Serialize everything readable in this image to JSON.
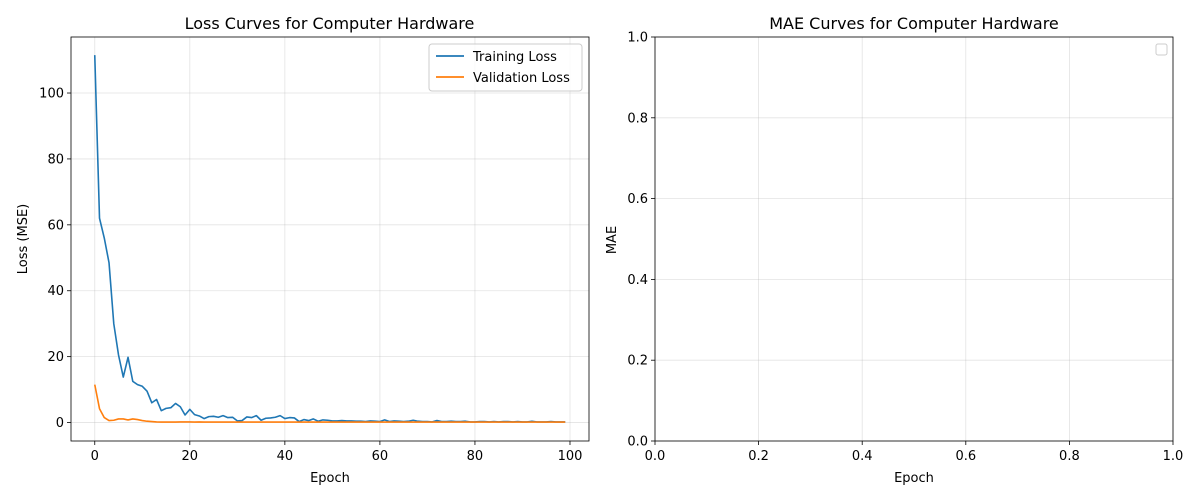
{
  "chart_data": [
    {
      "type": "line",
      "title": "Loss Curves for Computer Hardware",
      "xlabel": "Epoch",
      "ylabel": "Loss (MSE)",
      "xlim": [
        -5,
        104
      ],
      "ylim": [
        -5.6,
        117
      ],
      "xticks": [
        0,
        20,
        40,
        60,
        80,
        100
      ],
      "yticks": [
        0,
        20,
        40,
        60,
        80,
        100
      ],
      "grid": true,
      "legend": "upper right",
      "series": [
        {
          "name": "Training Loss",
          "color": "#1f77b4",
          "x": [
            0,
            1,
            2,
            3,
            4,
            5,
            6,
            7,
            8,
            9,
            10,
            11,
            12,
            13,
            14,
            15,
            16,
            17,
            18,
            19,
            20,
            21,
            22,
            23,
            24,
            25,
            26,
            27,
            28,
            29,
            30,
            31,
            32,
            33,
            34,
            35,
            36,
            37,
            38,
            39,
            40,
            41,
            42,
            43,
            44,
            45,
            46,
            47,
            48,
            49,
            50,
            51,
            52,
            53,
            54,
            55,
            56,
            57,
            58,
            59,
            60,
            61,
            62,
            63,
            64,
            65,
            66,
            67,
            68,
            69,
            70,
            71,
            72,
            73,
            74,
            75,
            76,
            77,
            78,
            79,
            80,
            81,
            82,
            83,
            84,
            85,
            86,
            87,
            88,
            89,
            90,
            91,
            92,
            93,
            94,
            95,
            96,
            97,
            98,
            99
          ],
          "values": [
            111.5,
            62,
            56,
            48.5,
            30,
            20.5,
            13.8,
            19.8,
            12.5,
            11.5,
            11,
            9.5,
            6,
            7,
            3.6,
            4.3,
            4.5,
            5.8,
            4.8,
            2.3,
            4,
            2.4,
            2,
            1.2,
            1.8,
            1.9,
            1.6,
            2.1,
            1.5,
            1.6,
            0.5,
            0.6,
            1.7,
            1.5,
            2.1,
            0.7,
            1.3,
            1.4,
            1.6,
            2.1,
            1.2,
            1.5,
            1.4,
            0.3,
            0.9,
            0.6,
            1.1,
            0.4,
            0.8,
            0.7,
            0.5,
            0.5,
            0.6,
            0.5,
            0.5,
            0.4,
            0.4,
            0.3,
            0.5,
            0.4,
            0.3,
            0.8,
            0.3,
            0.5,
            0.4,
            0.3,
            0.4,
            0.7,
            0.4,
            0.3,
            0.3,
            0.2,
            0.6,
            0.3,
            0.3,
            0.4,
            0.3,
            0.3,
            0.4,
            0.2,
            0.2,
            0.3,
            0.3,
            0.2,
            0.3,
            0.2,
            0.3,
            0.3,
            0.2,
            0.3,
            0.2,
            0.2,
            0.4,
            0.2,
            0.2,
            0.2,
            0.3,
            0.2,
            0.2,
            0.2
          ]
        },
        {
          "name": "Validation Loss",
          "color": "#ff7f0e",
          "x": [
            0,
            1,
            2,
            3,
            4,
            5,
            6,
            7,
            8,
            9,
            10,
            11,
            12,
            13,
            14,
            15,
            16,
            17,
            18,
            19,
            20,
            21,
            22,
            23,
            24,
            25,
            26,
            27,
            28,
            29,
            30,
            31,
            32,
            33,
            34,
            35,
            36,
            37,
            38,
            39,
            40,
            41,
            42,
            43,
            44,
            45,
            46,
            47,
            48,
            49,
            50,
            51,
            52,
            53,
            54,
            55,
            56,
            57,
            58,
            59,
            60,
            61,
            62,
            63,
            64,
            65,
            66,
            67,
            68,
            69,
            70,
            71,
            72,
            73,
            74,
            75,
            76,
            77,
            78,
            79,
            80,
            81,
            82,
            83,
            84,
            85,
            86,
            87,
            88,
            89,
            90,
            91,
            92,
            93,
            94,
            95,
            96,
            97,
            98,
            99
          ],
          "values": [
            11.5,
            4.2,
            1.5,
            0.6,
            0.7,
            1.1,
            1.1,
            0.8,
            1.1,
            0.9,
            0.6,
            0.4,
            0.3,
            0.2,
            0.15,
            0.15,
            0.15,
            0.15,
            0.2,
            0.2,
            0.2,
            0.15,
            0.2,
            0.15,
            0.15,
            0.15,
            0.15,
            0.15,
            0.15,
            0.15,
            0.15,
            0.15,
            0.15,
            0.15,
            0.15,
            0.15,
            0.15,
            0.15,
            0.15,
            0.15,
            0.15,
            0.15,
            0.15,
            0.15,
            0.15,
            0.15,
            0.15,
            0.15,
            0.15,
            0.15,
            0.15,
            0.15,
            0.15,
            0.15,
            0.15,
            0.15,
            0.15,
            0.15,
            0.15,
            0.15,
            0.15,
            0.15,
            0.15,
            0.15,
            0.15,
            0.15,
            0.15,
            0.15,
            0.15,
            0.15,
            0.15,
            0.15,
            0.15,
            0.15,
            0.15,
            0.15,
            0.15,
            0.15,
            0.15,
            0.15,
            0.15,
            0.15,
            0.15,
            0.15,
            0.15,
            0.15,
            0.15,
            0.15,
            0.15,
            0.15,
            0.15,
            0.15,
            0.15,
            0.15,
            0.15,
            0.15,
            0.15,
            0.15,
            0.15,
            0.15
          ]
        }
      ]
    },
    {
      "type": "line",
      "title": "MAE Curves for Computer Hardware",
      "xlabel": "Epoch",
      "ylabel": "MAE",
      "xlim": [
        0,
        1
      ],
      "ylim": [
        0,
        1
      ],
      "xticks": [
        "0.0",
        "0.2",
        "0.4",
        "0.6",
        "0.8",
        "1.0"
      ],
      "yticks": [
        "0.0",
        "0.2",
        "0.4",
        "0.6",
        "0.8",
        "1.0"
      ],
      "grid": true,
      "legend": "upper right",
      "series": []
    }
  ]
}
